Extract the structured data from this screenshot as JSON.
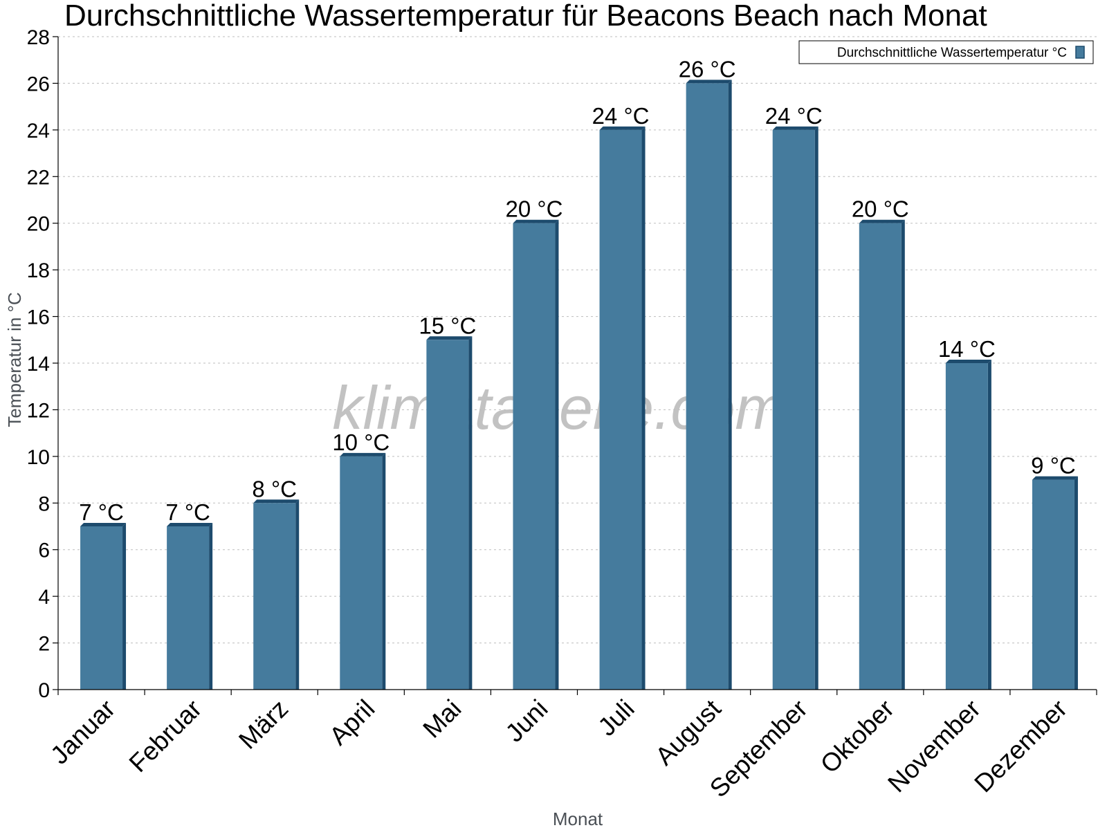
{
  "colors": {
    "bar_face": "#457b9d",
    "bar_shade": "#1d4b6d",
    "background": "#ffffff"
  },
  "watermark": "klimatabelle.com",
  "chart_data": {
    "type": "bar",
    "title": "Durchschnittliche Wassertemperatur für Beacons Beach nach Monat",
    "xlabel": "Monat",
    "ylabel": "Temperatur in °C",
    "ylim": [
      0,
      28
    ],
    "yticks": [
      0,
      2,
      4,
      6,
      8,
      10,
      12,
      14,
      16,
      18,
      20,
      22,
      24,
      26,
      28
    ],
    "grid": true,
    "legend_position": "top-right",
    "categories": [
      "Januar",
      "Februar",
      "März",
      "April",
      "Mai",
      "Juni",
      "Juli",
      "August",
      "September",
      "Oktober",
      "November",
      "Dezember"
    ],
    "series": [
      {
        "name": "Durchschnittliche Wassertemperatur °C",
        "values": [
          7,
          7,
          8,
          10,
          15,
          20,
          24,
          26,
          24,
          20,
          14,
          9
        ],
        "labels": [
          "7 °C",
          "7 °C",
          "8 °C",
          "10 °C",
          "15 °C",
          "20 °C",
          "24 °C",
          "26 °C",
          "24 °C",
          "20 °C",
          "14 °C",
          "9 °C"
        ]
      }
    ]
  }
}
